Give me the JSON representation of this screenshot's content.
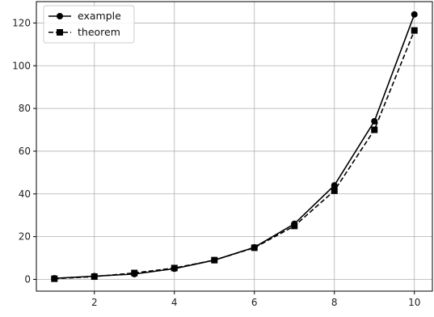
{
  "chart_data": {
    "type": "line",
    "title": "",
    "xlabel": "",
    "ylabel": "",
    "x": [
      1,
      2,
      3,
      4,
      5,
      6,
      7,
      8,
      9,
      10
    ],
    "xlim": [
      0.55,
      10.45
    ],
    "ylim": [
      -5.5,
      130
    ],
    "xticks": [
      2,
      4,
      6,
      8,
      10
    ],
    "yticks": [
      0,
      20,
      40,
      60,
      80,
      100,
      120
    ],
    "grid": true,
    "legend_position": "top-left",
    "series": [
      {
        "name": "example",
        "values": [
          0.5,
          1.5,
          2.5,
          5,
          9,
          15,
          26,
          44,
          74,
          124
        ],
        "color": "#000000",
        "line_style": "solid",
        "marker": "circle"
      },
      {
        "name": "theorem",
        "values": [
          0.3,
          1.3,
          3,
          5.3,
          9,
          14.8,
          25,
          41.5,
          70,
          116.5
        ],
        "color": "#000000",
        "line_style": "dashed",
        "marker": "square"
      }
    ]
  }
}
